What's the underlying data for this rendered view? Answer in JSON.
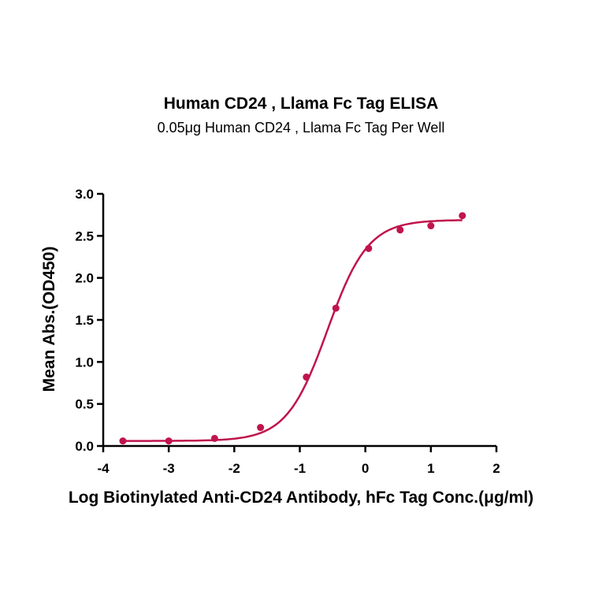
{
  "chart_data": {
    "type": "scatter",
    "title": "Human CD24 , Llama Fc Tag ELISA",
    "subtitle": "0.05μg Human CD24 , Llama Fc Tag Per Well",
    "xlabel": "Log Biotinylated Anti-CD24 Antibody, hFc Tag Conc.(μg/ml)",
    "ylabel": "Mean Abs.(OD450)",
    "xlim": [
      -4,
      2
    ],
    "ylim": [
      0,
      3.0
    ],
    "x_ticks": [
      "-4",
      "-3",
      "-2",
      "-1",
      "0",
      "1",
      "2"
    ],
    "y_ticks": [
      "0.0",
      "0.5",
      "1.0",
      "1.5",
      "2.0",
      "2.5",
      "3.0"
    ],
    "grid": false,
    "color": "#c0144c",
    "series": [
      {
        "points": {
          "x": [
            -3.7,
            -3.0,
            -2.3,
            -1.6,
            -0.9,
            -0.45,
            0.05,
            0.53,
            1.0,
            1.48
          ],
          "y": [
            0.06,
            0.06,
            0.09,
            0.22,
            0.82,
            1.64,
            2.35,
            2.57,
            2.62,
            2.74
          ]
        },
        "fit": {
          "model": "4PL",
          "bottom": 0.06,
          "top": 2.69,
          "logEC50": -0.58,
          "hill": 1.4
        }
      }
    ]
  }
}
